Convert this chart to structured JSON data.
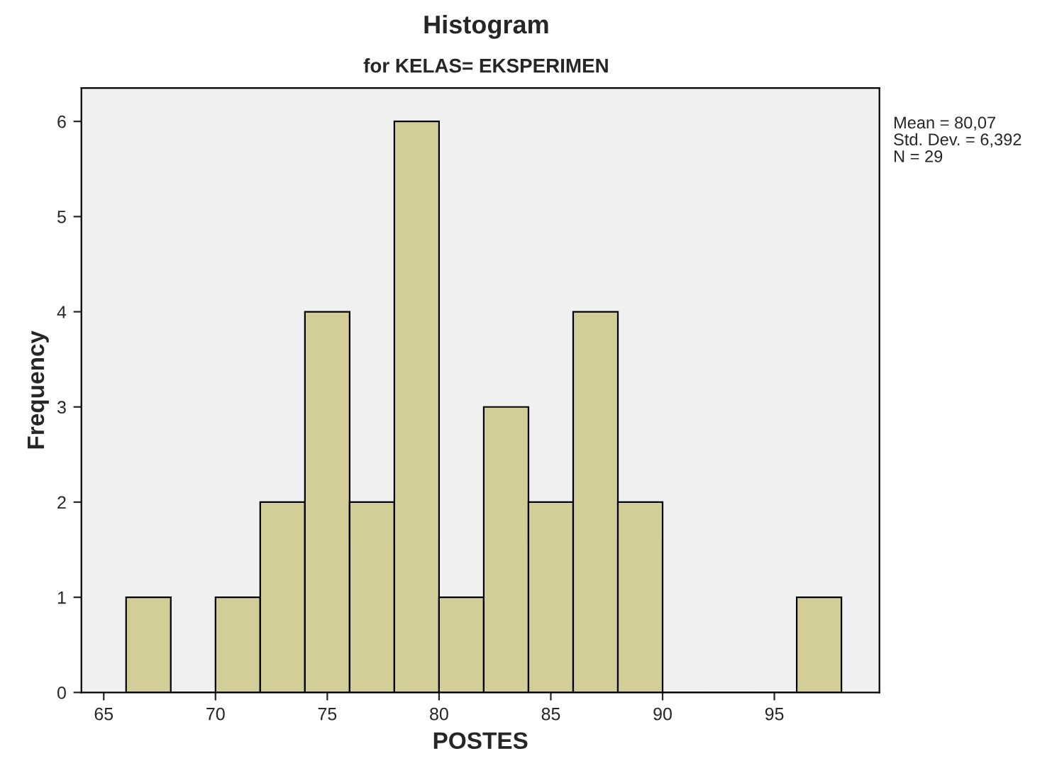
{
  "chart_data": {
    "type": "histogram",
    "title": "Histogram",
    "subtitle": "for KELAS= EKSPERIMEN",
    "xlabel": "POSTES",
    "ylabel": "Frequency",
    "bins": [
      66,
      68,
      70,
      72,
      74,
      76,
      78,
      80,
      82,
      84,
      86,
      88,
      90,
      92,
      94,
      96,
      98
    ],
    "values": [
      1,
      0,
      1,
      2,
      4,
      2,
      6,
      1,
      3,
      2,
      4,
      2,
      0,
      0,
      0,
      1
    ],
    "color": "#d3ce98",
    "xlim": [
      64,
      99.7
    ],
    "xticks": [
      65,
      70,
      75,
      80,
      85,
      90,
      95
    ],
    "ylim": [
      0,
      6.35
    ],
    "yticks": [
      0,
      1,
      2,
      3,
      4,
      5,
      6
    ],
    "annotations": [
      "Mean = 80,07",
      "Std. Dev. = 6,392",
      "N = 29"
    ],
    "grid": false,
    "legend": false
  }
}
